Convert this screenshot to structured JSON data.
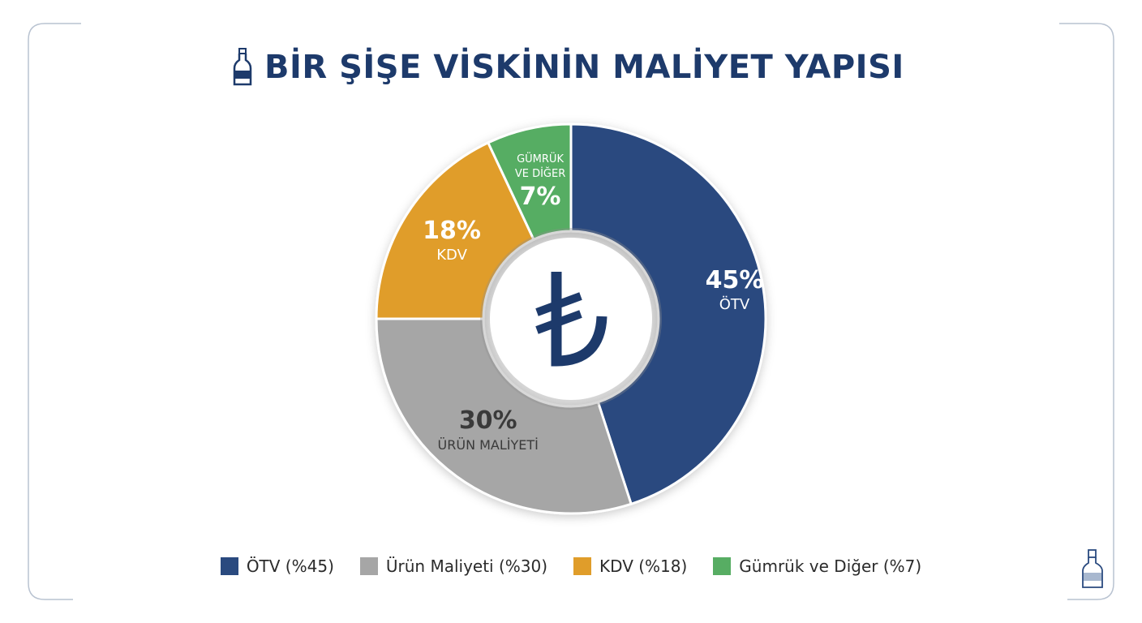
{
  "title": "BİR ŞİŞE VİSKİNİN MALİYET YAPISI",
  "center_icon": "turkish-lira-icon",
  "title_icon": "bottle-icon",
  "chart_data": {
    "type": "pie",
    "donut": true,
    "title": "BİR ŞİŞE VİSKİNİN MALİYET YAPISI",
    "slices": [
      {
        "label": "ÖTV",
        "value": 45,
        "pct_label": "45%",
        "legend": "ÖTV (%45)",
        "color": "#2a4a7f",
        "text_color": "#ffffff"
      },
      {
        "label": "ÜRÜN MALİYETİ",
        "value": 30,
        "pct_label": "30%",
        "legend": "Ürün Maliyeti (%30)",
        "color": "#a6a6a6",
        "text_color": "#3a3a3a"
      },
      {
        "label": "KDV",
        "value": 18,
        "pct_label": "18%",
        "legend": "KDV (%18)",
        "color": "#e09d2a",
        "text_color": "#ffffff"
      },
      {
        "label": "GÜMRÜK VE DİĞER",
        "label_lines": [
          "GÜMRÜK",
          "VE DİĞER"
        ],
        "value": 7,
        "pct_label": "7%",
        "legend": "Gümrük ve Diğer (%7)",
        "color": "#57ad63",
        "text_color": "#ffffff"
      }
    ],
    "legend_position": "bottom"
  }
}
